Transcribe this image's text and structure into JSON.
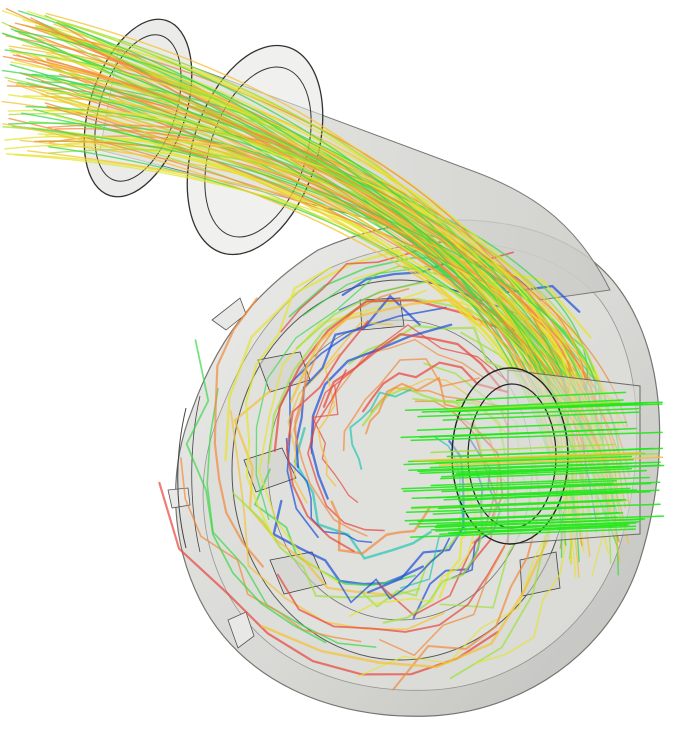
{
  "scene": {
    "subject": "centrifugal-pump-streamlines",
    "colors": {
      "background": "#ffffff",
      "casing_fill": "#d6d6d3",
      "casing_shadow": "#bdbdb9",
      "casing_outline": "#2b2b2b",
      "inlet_green": "#22e81a",
      "stream_palette": [
        "#1a4fd8",
        "#22c8b0",
        "#3ad84a",
        "#9ee23a",
        "#e4e62c",
        "#f5c232",
        "#f28a3c",
        "#e8453a"
      ]
    }
  }
}
